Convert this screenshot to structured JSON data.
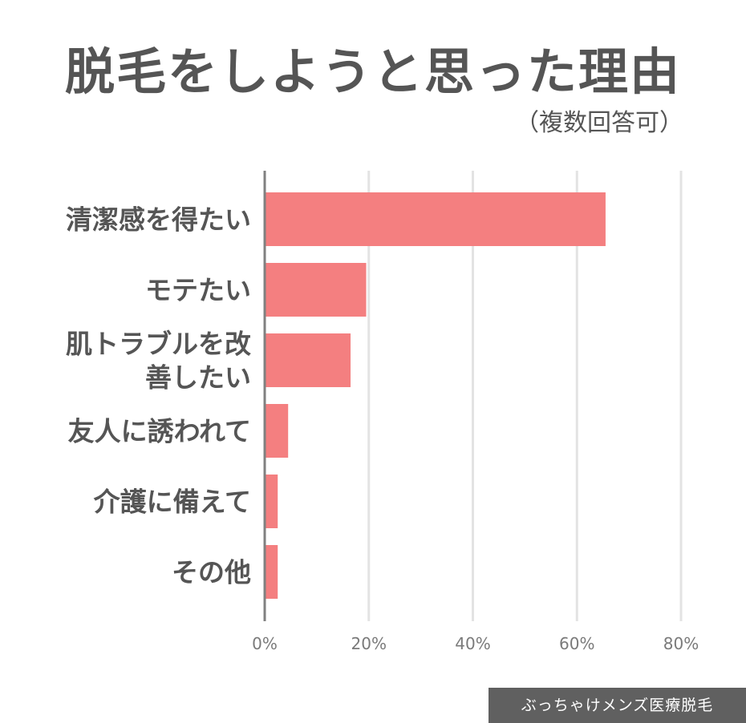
{
  "chart_data": {
    "type": "bar",
    "orientation": "horizontal",
    "title": "脱毛をしようと思った理由",
    "subtitle": "（複数回答可）",
    "categories": [
      [
        "清潔感を得たい"
      ],
      [
        "モテたい"
      ],
      [
        "肌トラブルを改",
        "善したい"
      ],
      [
        "友人に誘われて"
      ],
      [
        "介護に備えて"
      ],
      [
        "その他"
      ]
    ],
    "values": [
      65.5,
      19.5,
      16.5,
      4.5,
      2.5,
      2.5
    ],
    "xlim": [
      0,
      80
    ],
    "xticks": [
      0,
      20,
      40,
      60,
      80
    ],
    "tick_format": "%",
    "grid": true,
    "bar_color": "#f47f80",
    "grid_color": "#e3e3e3",
    "axis_color": "#808080"
  },
  "footer": {
    "brand": "ぶっちゃけメンズ医療脱毛"
  }
}
